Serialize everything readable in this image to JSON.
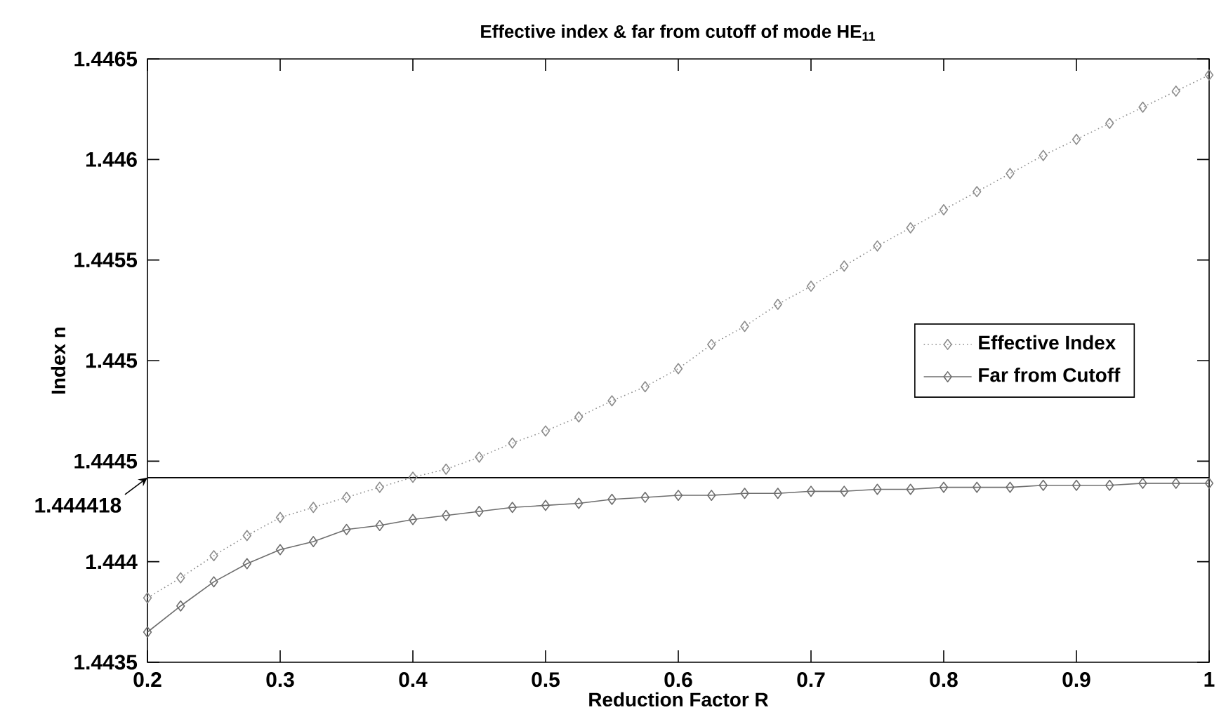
{
  "chart_data": {
    "type": "line",
    "title": "Effective index & far from cutoff of mode HE$_{11}$",
    "xlabel": "Reduction Factor R",
    "ylabel": "Index n",
    "x": [
      0.2,
      0.225,
      0.25,
      0.275,
      0.3,
      0.325,
      0.35,
      0.375,
      0.4,
      0.425,
      0.45,
      0.475,
      0.5,
      0.525,
      0.55,
      0.575,
      0.6,
      0.625,
      0.65,
      0.675,
      0.7,
      0.725,
      0.75,
      0.775,
      0.8,
      0.825,
      0.85,
      0.875,
      0.9,
      0.925,
      0.95,
      0.975,
      1.0
    ],
    "series": [
      {
        "name": "Effective Index",
        "color": "#8c8c8c",
        "line_style": "dotted",
        "values": [
          1.44382,
          1.44392,
          1.44403,
          1.44413,
          1.44422,
          1.44427,
          1.44432,
          1.44437,
          1.44442,
          1.44446,
          1.44452,
          1.44459,
          1.44465,
          1.44472,
          1.4448,
          1.44487,
          1.44496,
          1.44508,
          1.44517,
          1.44528,
          1.44537,
          1.44547,
          1.44557,
          1.44566,
          1.44575,
          1.44584,
          1.44593,
          1.44602,
          1.4461,
          1.44618,
          1.44626,
          1.44634,
          1.44642
        ]
      },
      {
        "name": "Far from Cutoff",
        "color": "#6e6e6e",
        "line_style": "solid",
        "values": [
          1.44365,
          1.44378,
          1.4439,
          1.44399,
          1.44406,
          1.4441,
          1.44416,
          1.44418,
          1.44421,
          1.44423,
          1.44425,
          1.44427,
          1.44428,
          1.44429,
          1.44431,
          1.44432,
          1.44433,
          1.44433,
          1.44434,
          1.44434,
          1.44435,
          1.44435,
          1.44436,
          1.44436,
          1.44437,
          1.44437,
          1.44437,
          1.44438,
          1.44438,
          1.44438,
          1.44439,
          1.44439,
          1.44439
        ]
      }
    ],
    "xlim": [
      0.2,
      1
    ],
    "xticks": [
      0.2,
      0.3,
      0.4,
      0.5,
      0.6,
      0.7,
      0.8,
      0.9,
      1
    ],
    "ylim": [
      1.4435,
      1.4465
    ],
    "yticks": [
      1.4435,
      1.444,
      1.4445,
      1.445,
      1.4455,
      1.446,
      1.4465
    ],
    "ref_lines": [
      {
        "axis": "y",
        "value": 1.444418,
        "label": "1.444418",
        "color": "#000000"
      }
    ],
    "marker": "diamond",
    "legend": "right",
    "grid": false
  }
}
